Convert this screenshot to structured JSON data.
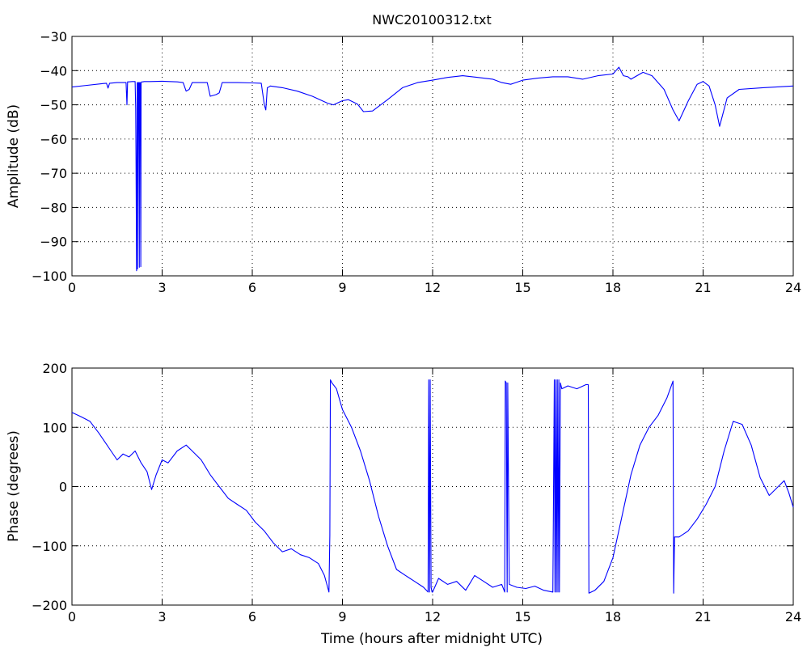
{
  "chart_data": [
    {
      "type": "line",
      "title": "NWC20100312.txt",
      "xlabel": "",
      "ylabel": "Amplitude (dB)",
      "xlim": [
        0,
        24
      ],
      "ylim": [
        -100,
        -30
      ],
      "xticks": [
        "0",
        "3",
        "6",
        "9",
        "12",
        "15",
        "18",
        "21",
        "24"
      ],
      "xtick_values": [
        0,
        3,
        6,
        9,
        12,
        15,
        18,
        21,
        24
      ],
      "yticks": [
        "−30",
        "−40",
        "−50",
        "−60",
        "−70",
        "−80",
        "−90",
        "−100"
      ],
      "ytick_values": [
        -30,
        -40,
        -50,
        -60,
        -70,
        -80,
        -90,
        -100
      ],
      "grid": true,
      "color": "#0000ff",
      "series": [
        {
          "x": [
            0,
            0.5,
            1.0,
            1.15,
            1.2,
            1.25,
            1.5,
            1.8,
            1.83,
            1.85,
            1.9,
            2.0,
            2.1,
            2.12,
            2.13,
            2.15,
            2.17,
            2.18,
            2.2,
            2.22,
            2.24,
            2.25,
            2.27,
            2.29,
            2.3,
            2.32,
            2.34,
            2.36,
            2.4,
            2.6,
            3.0,
            3.5,
            3.7,
            3.8,
            3.9,
            4.0,
            4.5,
            4.6,
            4.8,
            4.9,
            5.0,
            5.5,
            6.0,
            6.3,
            6.4,
            6.45,
            6.5,
            6.55,
            6.6,
            7.0,
            7.5,
            8.0,
            8.5,
            8.7,
            9.0,
            9.2,
            9.5,
            9.7,
            10.0,
            10.5,
            11.0,
            11.5,
            12.0,
            12.5,
            13.0,
            13.5,
            14.0,
            14.3,
            14.6,
            15.0,
            15.5,
            16.0,
            16.5,
            17.0,
            17.5,
            18.0,
            18.2,
            18.35,
            18.5,
            18.6,
            18.8,
            19.0,
            19.3,
            19.7,
            20.0,
            20.2,
            20.5,
            20.8,
            21.0,
            21.2,
            21.4,
            21.55,
            21.8,
            22.2,
            23.0,
            24.0
          ],
          "y": [
            -44.8,
            -44.3,
            -43.8,
            -43.7,
            -45.1,
            -43.7,
            -43.5,
            -43.5,
            -50.0,
            -43.3,
            -43.3,
            -43.2,
            -43.2,
            -51.0,
            -66.0,
            -98.5,
            -43.5,
            -98.0,
            -43.5,
            -43.5,
            -97.5,
            -43.5,
            -43.5,
            -97.3,
            -43.5,
            -43.3,
            -43.3,
            -43.3,
            -43.2,
            -43.2,
            -43.1,
            -43.3,
            -43.5,
            -46.0,
            -45.5,
            -43.5,
            -43.5,
            -47.5,
            -47.0,
            -46.5,
            -43.5,
            -43.5,
            -43.6,
            -43.7,
            -50.0,
            -51.5,
            -45.0,
            -44.8,
            -44.5,
            -45.0,
            -46.0,
            -47.5,
            -49.5,
            -50.0,
            -48.8,
            -48.5,
            -49.8,
            -52.0,
            -51.8,
            -48.5,
            -45.0,
            -43.5,
            -42.8,
            -42.0,
            -41.5,
            -42.0,
            -42.5,
            -43.5,
            -44.0,
            -42.8,
            -42.2,
            -41.8,
            -41.8,
            -42.5,
            -41.5,
            -41.0,
            -39.0,
            -41.5,
            -41.8,
            -42.5,
            -41.5,
            -40.5,
            -41.5,
            -45.5,
            -51.5,
            -54.7,
            -49.0,
            -44.0,
            -43.2,
            -44.5,
            -50.0,
            -56.3,
            -48.0,
            -45.5,
            -45.0,
            -44.5
          ]
        }
      ]
    },
    {
      "type": "line",
      "title": "",
      "xlabel": "Time (hours after midnight UTC)",
      "ylabel": "Phase (degrees)",
      "xlim": [
        0,
        24
      ],
      "ylim": [
        -200,
        200
      ],
      "xticks": [
        "0",
        "3",
        "6",
        "9",
        "12",
        "15",
        "18",
        "21",
        "24"
      ],
      "xtick_values": [
        0,
        3,
        6,
        9,
        12,
        15,
        18,
        21,
        24
      ],
      "yticks": [
        "200",
        "100",
        "0",
        "−100",
        "−200"
      ],
      "ytick_values": [
        200,
        100,
        0,
        -100,
        -200
      ],
      "grid": true,
      "color": "#0000ff",
      "series": [
        {
          "x": [
            0,
            0.3,
            0.6,
            0.9,
            1.1,
            1.3,
            1.5,
            1.7,
            1.9,
            2.1,
            2.3,
            2.5,
            2.65,
            2.8,
            3.0,
            3.2,
            3.5,
            3.8,
            4.0,
            4.3,
            4.6,
            4.9,
            5.2,
            5.5,
            5.8,
            6.1,
            6.4,
            6.7,
            7.0,
            7.3,
            7.6,
            7.9,
            8.2,
            8.4,
            8.55,
            8.58,
            8.6,
            8.65,
            8.8,
            9.0,
            9.3,
            9.6,
            9.9,
            10.2,
            10.5,
            10.8,
            11.1,
            11.4,
            11.7,
            11.85,
            11.87,
            11.9,
            11.92,
            11.95,
            11.98,
            12.0,
            12.2,
            12.5,
            12.8,
            13.1,
            13.4,
            13.7,
            14.0,
            14.3,
            14.4,
            14.42,
            14.45,
            14.48,
            14.5,
            14.55,
            14.8,
            15.1,
            15.4,
            15.7,
            16.0,
            16.05,
            16.07,
            16.1,
            16.12,
            16.15,
            16.17,
            16.2,
            16.22,
            16.25,
            16.3,
            16.5,
            16.8,
            17.1,
            17.18,
            17.2,
            17.4,
            17.7,
            18.0,
            18.3,
            18.6,
            18.9,
            19.2,
            19.5,
            19.8,
            20.0,
            20.02,
            20.05,
            20.2,
            20.5,
            20.8,
            21.1,
            21.4,
            21.7,
            22.0,
            22.3,
            22.6,
            22.9,
            23.2,
            23.5,
            23.7,
            23.85,
            24.0
          ],
          "y": [
            125,
            118,
            110,
            90,
            75,
            60,
            45,
            55,
            50,
            60,
            40,
            25,
            -5,
            20,
            45,
            40,
            60,
            70,
            60,
            45,
            20,
            0,
            -20,
            -30,
            -40,
            -60,
            -75,
            -95,
            -110,
            -105,
            -115,
            -120,
            -130,
            -150,
            -178,
            -82,
            180,
            175,
            165,
            130,
            100,
            60,
            10,
            -50,
            -100,
            -140,
            -150,
            -160,
            -170,
            -178,
            180,
            -178,
            180,
            -170,
            -178,
            -178,
            -155,
            -165,
            -160,
            -175,
            -150,
            -160,
            -170,
            -165,
            -178,
            178,
            175,
            -178,
            175,
            -165,
            -170,
            -172,
            -168,
            -175,
            -178,
            180,
            -178,
            180,
            -178,
            180,
            -178,
            180,
            -178,
            175,
            165,
            170,
            165,
            172,
            172,
            -180,
            -175,
            -160,
            -120,
            -50,
            20,
            70,
            100,
            120,
            150,
            178,
            -180,
            -85,
            -85,
            -75,
            -55,
            -30,
            0,
            60,
            110,
            105,
            70,
            15,
            -15,
            0,
            10,
            -10,
            -35
          ]
        }
      ]
    }
  ]
}
